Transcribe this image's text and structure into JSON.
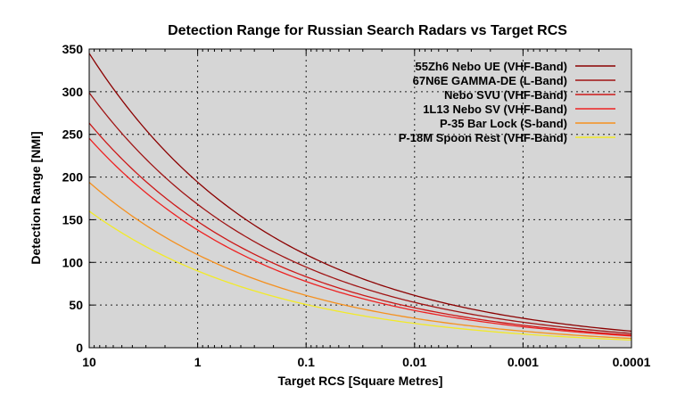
{
  "chart_data": {
    "type": "line",
    "title": "Detection Range for Russian Search Radars vs Target RCS",
    "xlabel": "Target RCS [Square Metres]",
    "ylabel": "Detection Range [NMI]",
    "x_scale": "log",
    "x_reversed": true,
    "xlim": [
      10,
      0.0001
    ],
    "ylim": [
      0,
      350
    ],
    "x_ticks": [
      10,
      1,
      0.1,
      0.01,
      0.001,
      0.0001
    ],
    "x_tick_labels": [
      "10",
      "1",
      "0.1",
      "0.01",
      "0.001",
      "0.0001"
    ],
    "y_ticks": [
      0,
      50,
      100,
      150,
      200,
      250,
      300,
      350
    ],
    "y_tick_labels": [
      "0",
      "50",
      "100",
      "150",
      "200",
      "250",
      "300",
      "350"
    ],
    "grid": true,
    "legend_position": "top-right",
    "background_color": "#d6d6d6",
    "series": [
      {
        "name": "55Zh6 Nebo UE (VHF-Band)",
        "color": "#8b0000",
        "range_at_1m2": 194,
        "x": [
          10,
          1,
          0.1,
          0.01,
          0.001,
          0.0001
        ],
        "y": [
          345,
          194,
          109,
          61,
          34,
          19
        ]
      },
      {
        "name": "67N6E GAMMA-DE (L-Band)",
        "color": "#a01414",
        "range_at_1m2": 168,
        "x": [
          10,
          1,
          0.1,
          0.01,
          0.001,
          0.0001
        ],
        "y": [
          299,
          168,
          94,
          53,
          30,
          17
        ]
      },
      {
        "name": "Nebo SVU (VHF-Band)",
        "color": "#cc1818",
        "range_at_1m2": 148,
        "x": [
          10,
          1,
          0.1,
          0.01,
          0.001,
          0.0001
        ],
        "y": [
          263,
          148,
          83,
          47,
          26,
          15
        ]
      },
      {
        "name": "1L13 Nebo SV (VHF-Band)",
        "color": "#ee2222",
        "range_at_1m2": 138,
        "x": [
          10,
          1,
          0.1,
          0.01,
          0.001,
          0.0001
        ],
        "y": [
          245,
          138,
          78,
          44,
          25,
          14
        ]
      },
      {
        "name": "P-35 Bar Lock (S-band)",
        "color": "#f5901e",
        "range_at_1m2": 109,
        "x": [
          10,
          1,
          0.1,
          0.01,
          0.001,
          0.0001
        ],
        "y": [
          194,
          109,
          61,
          34,
          19,
          11
        ]
      },
      {
        "name": "P-18M Spoon Rest (VHF-Band)",
        "color": "#f2ea28",
        "range_at_1m2": 90,
        "x": [
          10,
          1,
          0.1,
          0.01,
          0.001,
          0.0001
        ],
        "y": [
          160,
          90,
          51,
          28,
          16,
          9
        ]
      }
    ]
  }
}
